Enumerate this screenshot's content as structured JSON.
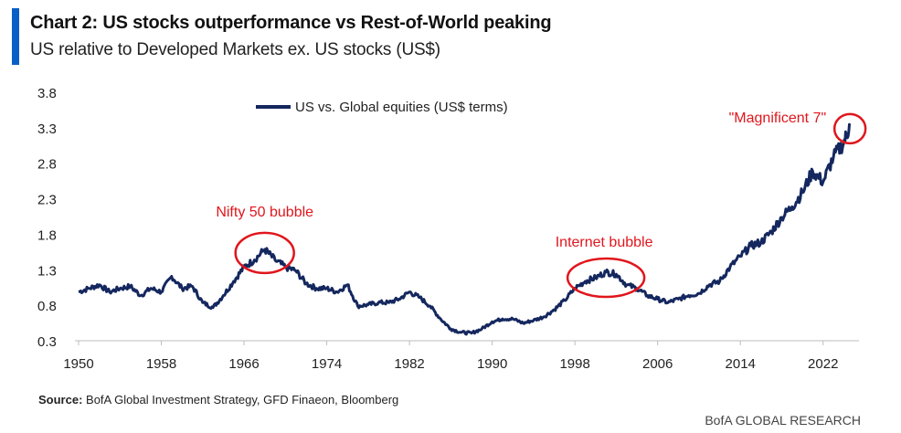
{
  "header": {
    "title": "Chart 2: US stocks outperformance vs Rest-of-World peaking",
    "subtitle": "US relative to Developed Markets ex. US stocks (US$)"
  },
  "footer": {
    "source_label": "Source:",
    "source_text": " BofA Global Investment Strategy, GFD Finaeon, Bloomberg",
    "brand": "BofA GLOBAL RESEARCH"
  },
  "colors": {
    "line": "#14275e",
    "accent": "#0a5ec7",
    "annotation": "#e0161c"
  },
  "chart_data": {
    "type": "line",
    "title": "Chart 2: US stocks outperformance vs Rest-of-World peaking",
    "subtitle": "US relative to Developed Markets ex. US stocks (US$)",
    "xlabel": "",
    "ylabel": "",
    "xlim": [
      1950,
      2026
    ],
    "ylim": [
      0.3,
      3.8
    ],
    "x_ticks": [
      "1950",
      "1958",
      "1966",
      "1974",
      "1982",
      "1990",
      "1998",
      "2006",
      "2014",
      "2022"
    ],
    "y_ticks": [
      "0.3",
      "0.8",
      "1.3",
      "1.8",
      "2.3",
      "2.8",
      "3.3",
      "3.8"
    ],
    "grid": false,
    "legend_position": "top-center",
    "series": [
      {
        "name": "US vs. Global equities (US$ terms)",
        "x": [
          1950,
          1951,
          1952,
          1953,
          1954,
          1955,
          1956,
          1957,
          1958,
          1959,
          1960,
          1961,
          1962,
          1963,
          1964,
          1965,
          1966,
          1967,
          1968,
          1969,
          1970,
          1971,
          1972,
          1973,
          1974,
          1975,
          1976,
          1977,
          1978,
          1979,
          1980,
          1981,
          1982,
          1983,
          1984,
          1985,
          1986,
          1987,
          1988,
          1989,
          1990,
          1991,
          1992,
          1993,
          1994,
          1995,
          1996,
          1997,
          1998,
          1999,
          2000,
          2001,
          2002,
          2003,
          2004,
          2005,
          2006,
          2007,
          2008,
          2009,
          2010,
          2011,
          2012,
          2013,
          2014,
          2015,
          2016,
          2017,
          2018,
          2019,
          2020,
          2021,
          2022,
          2023,
          2024,
          2024.6
        ],
        "values": [
          1.0,
          1.05,
          1.1,
          1.0,
          1.05,
          1.08,
          0.95,
          1.05,
          1.0,
          1.22,
          1.05,
          1.08,
          0.85,
          0.78,
          0.95,
          1.15,
          1.35,
          1.45,
          1.6,
          1.45,
          1.35,
          1.3,
          1.12,
          1.05,
          1.05,
          1.0,
          1.1,
          0.8,
          0.82,
          0.85,
          0.85,
          0.9,
          1.0,
          0.92,
          0.8,
          0.62,
          0.48,
          0.43,
          0.42,
          0.48,
          0.58,
          0.62,
          0.62,
          0.56,
          0.6,
          0.65,
          0.75,
          0.88,
          1.05,
          1.15,
          1.2,
          1.28,
          1.25,
          1.1,
          1.05,
          0.95,
          0.9,
          0.85,
          0.9,
          0.95,
          0.98,
          1.1,
          1.15,
          1.35,
          1.5,
          1.65,
          1.7,
          1.85,
          2.05,
          2.2,
          2.4,
          2.7,
          2.55,
          2.9,
          3.1,
          3.35
        ]
      }
    ],
    "annotations": [
      {
        "text": "Nifty 50 bubble",
        "x": 1968,
        "y": 1.55
      },
      {
        "text": "Internet bubble",
        "x": 2001,
        "y": 1.2
      },
      {
        "text": "\"Magnificent 7\"",
        "x": 2024.6,
        "y": 3.3
      }
    ]
  }
}
